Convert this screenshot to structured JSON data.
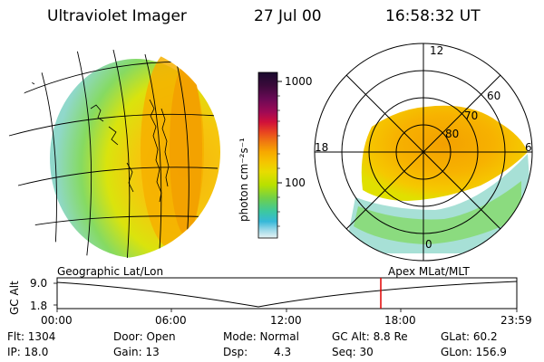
{
  "header": {
    "instrument": "Ultraviolet Imager",
    "date": "27 Jul 00",
    "time": "16:58:32 UT"
  },
  "colorbar": {
    "label": "photon cm⁻²s⁻¹",
    "ticks": [
      "1000",
      "100"
    ],
    "colors": [
      "#1a0a2e",
      "#3b0a3a",
      "#6a0a55",
      "#a00a55",
      "#d0103a",
      "#e84420",
      "#f07a10",
      "#f7a800",
      "#f5c400",
      "#e8dc00",
      "#b8e000",
      "#6fd04a",
      "#3cc8a0",
      "#36b8d8",
      "#9ad8e8",
      "#d8eef2"
    ]
  },
  "polar_plot": {
    "labels": [
      "12",
      "60",
      "70",
      "80",
      "18",
      "6",
      "0"
    ]
  },
  "timeline": {
    "left_label": "Geographic Lat/Lon",
    "right_label": "Apex MLat/MLT",
    "axis_title": "GC Alt",
    "y_ticks": [
      "9.0",
      "1.8"
    ],
    "x_ticks": [
      "00:00",
      "06:00",
      "12:00",
      "18:00",
      "23:59"
    ],
    "marker_color": "#e00000"
  },
  "info": {
    "flt": "Flt: 1304",
    "ip": "IP: 18.0",
    "door": "Door: Open",
    "gain": "Gain: 13",
    "mode": "Mode: Normal",
    "dsp_label": "Dsp:",
    "dsp_value": "4.3",
    "gcalt": "GC Alt: 8.8 Re",
    "seq": "Seq: 30",
    "glat": "GLat: 60.2",
    "glon": "GLon: 156.9"
  }
}
